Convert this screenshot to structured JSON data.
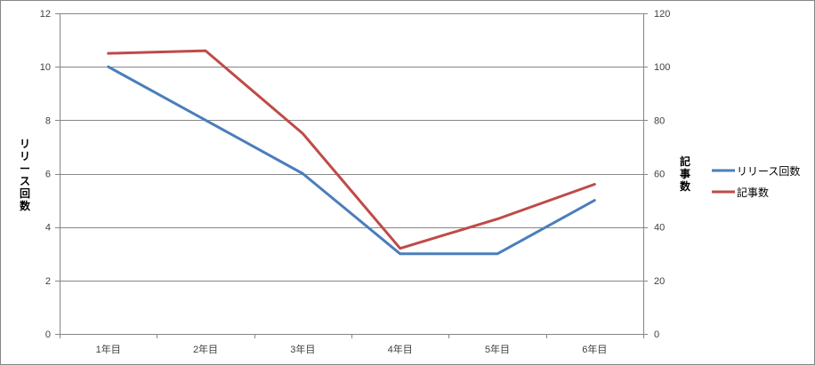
{
  "chart_data": {
    "type": "line",
    "categories": [
      "1年目",
      "2年目",
      "3年目",
      "4年目",
      "5年目",
      "6年目"
    ],
    "series": [
      {
        "name": "リリース回数",
        "axis": "left",
        "color": "#4A7EBB",
        "values": [
          10,
          8,
          6,
          3,
          3,
          5
        ]
      },
      {
        "name": "記事数",
        "axis": "right",
        "color": "#BE4B48",
        "values": [
          105,
          106,
          75,
          32,
          43,
          56
        ]
      }
    ],
    "ylabel": "リリース回数",
    "y2label": "記事数",
    "ylim": [
      0,
      12
    ],
    "y2lim": [
      0,
      120
    ],
    "yticks": [
      0,
      2,
      4,
      6,
      8,
      10,
      12
    ],
    "y2ticks": [
      0,
      20,
      40,
      60,
      80,
      100,
      120
    ],
    "grid": true,
    "legend_position": "right",
    "gridline_color": "#868686"
  }
}
